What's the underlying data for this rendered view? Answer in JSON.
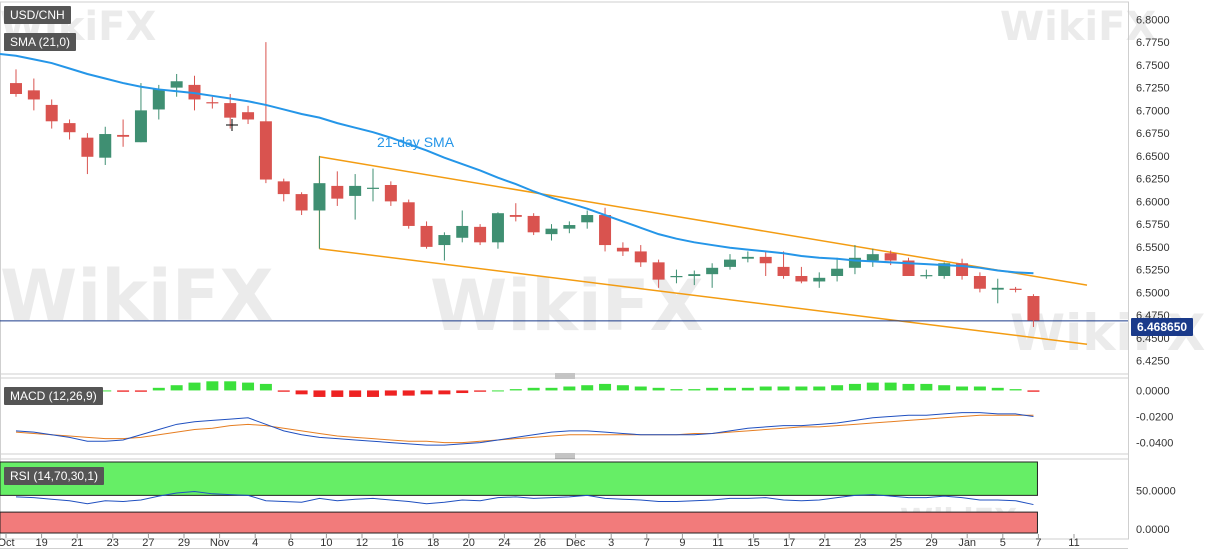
{
  "instrument": "USD/CNH",
  "watermark": "WikiFX",
  "colors": {
    "up": "#3f8f72",
    "down": "#d9534f",
    "sma": "#2596e8",
    "channel": "#f39c12",
    "macd_line": "#2050c0",
    "signal_line": "#e67e22",
    "rsi_line": "#2050c0",
    "rsi_ob": "#66ee66",
    "rsi_os": "#f27b7b",
    "price_line": "#1a3a8a",
    "label_bg": "#555555"
  },
  "chart_data": [
    {
      "type": "candlestick",
      "panel": "price",
      "title": "USD/CNH",
      "ylim": [
        6.4125,
        6.8125
      ],
      "yticks": [
        "6.8000",
        "6.7750",
        "6.7500",
        "6.7250",
        "6.7000",
        "6.6750",
        "6.6500",
        "6.6250",
        "6.6000",
        "6.5750",
        "6.5500",
        "6.5250",
        "6.5000",
        "6.4750",
        "6.4500",
        "6.4250"
      ],
      "x_tick_labels": [
        "Oct",
        "19",
        "21",
        "23",
        "27",
        "29",
        "Nov",
        "4",
        "6",
        "10",
        "12",
        "16",
        "18",
        "20",
        "24",
        "26",
        "Dec",
        "3",
        "7",
        "9",
        "11",
        "15",
        "17",
        "21",
        "23",
        "25",
        "29",
        "Jan",
        "5",
        "7",
        "11"
      ],
      "last_price_label": "6.468650",
      "last_price": 6.46865,
      "candles": [
        {
          "o": 6.73,
          "h": 6.745,
          "l": 6.715,
          "c": 6.718
        },
        {
          "o": 6.722,
          "h": 6.735,
          "l": 6.7,
          "c": 6.712
        },
        {
          "o": 6.706,
          "h": 6.712,
          "l": 6.68,
          "c": 6.688
        },
        {
          "o": 6.686,
          "h": 6.69,
          "l": 6.668,
          "c": 6.676
        },
        {
          "o": 6.67,
          "h": 6.675,
          "l": 6.63,
          "c": 6.649
        },
        {
          "o": 6.648,
          "h": 6.682,
          "l": 6.64,
          "c": 6.674
        },
        {
          "o": 6.673,
          "h": 6.69,
          "l": 6.66,
          "c": 6.671
        },
        {
          "o": 6.665,
          "h": 6.73,
          "l": 6.665,
          "c": 6.7
        },
        {
          "o": 6.701,
          "h": 6.728,
          "l": 6.69,
          "c": 6.723
        },
        {
          "o": 6.725,
          "h": 6.74,
          "l": 6.715,
          "c": 6.732
        },
        {
          "o": 6.728,
          "h": 6.738,
          "l": 6.7,
          "c": 6.712
        },
        {
          "o": 6.709,
          "h": 6.715,
          "l": 6.702,
          "c": 6.708
        },
        {
          "o": 6.708,
          "h": 6.718,
          "l": 6.68,
          "c": 6.692
        },
        {
          "o": 6.698,
          "h": 6.705,
          "l": 6.685,
          "c": 6.69
        },
        {
          "o": 6.688,
          "h": 6.775,
          "l": 6.62,
          "c": 6.624
        },
        {
          "o": 6.622,
          "h": 6.625,
          "l": 6.6,
          "c": 6.608
        },
        {
          "o": 6.608,
          "h": 6.61,
          "l": 6.585,
          "c": 6.59
        },
        {
          "o": 6.59,
          "h": 6.65,
          "l": 6.548,
          "c": 6.62
        },
        {
          "o": 6.617,
          "h": 6.633,
          "l": 6.595,
          "c": 6.603
        },
        {
          "o": 6.606,
          "h": 6.63,
          "l": 6.58,
          "c": 6.617
        },
        {
          "o": 6.614,
          "h": 6.636,
          "l": 6.6,
          "c": 6.615
        },
        {
          "o": 6.618,
          "h": 6.622,
          "l": 6.595,
          "c": 6.6
        },
        {
          "o": 6.599,
          "h": 6.602,
          "l": 6.57,
          "c": 6.573
        },
        {
          "o": 6.573,
          "h": 6.578,
          "l": 6.548,
          "c": 6.55
        },
        {
          "o": 6.552,
          "h": 6.566,
          "l": 6.535,
          "c": 6.563
        },
        {
          "o": 6.56,
          "h": 6.59,
          "l": 6.555,
          "c": 6.573
        },
        {
          "o": 6.572,
          "h": 6.575,
          "l": 6.552,
          "c": 6.555
        },
        {
          "o": 6.555,
          "h": 6.588,
          "l": 6.548,
          "c": 6.587
        },
        {
          "o": 6.585,
          "h": 6.598,
          "l": 6.578,
          "c": 6.583
        },
        {
          "o": 6.584,
          "h": 6.587,
          "l": 6.563,
          "c": 6.566
        },
        {
          "o": 6.564,
          "h": 6.575,
          "l": 6.557,
          "c": 6.57
        },
        {
          "o": 6.57,
          "h": 6.578,
          "l": 6.565,
          "c": 6.574
        },
        {
          "o": 6.577,
          "h": 6.59,
          "l": 6.57,
          "c": 6.585
        },
        {
          "o": 6.585,
          "h": 6.593,
          "l": 6.545,
          "c": 6.552
        },
        {
          "o": 6.549,
          "h": 6.555,
          "l": 6.54,
          "c": 6.545
        },
        {
          "o": 6.545,
          "h": 6.552,
          "l": 6.528,
          "c": 6.533
        },
        {
          "o": 6.533,
          "h": 6.536,
          "l": 6.505,
          "c": 6.514
        },
        {
          "o": 6.517,
          "h": 6.525,
          "l": 6.51,
          "c": 6.518
        },
        {
          "o": 6.518,
          "h": 6.524,
          "l": 6.508,
          "c": 6.52
        },
        {
          "o": 6.52,
          "h": 6.532,
          "l": 6.505,
          "c": 6.527
        },
        {
          "o": 6.528,
          "h": 6.542,
          "l": 6.525,
          "c": 6.536
        },
        {
          "o": 6.537,
          "h": 6.545,
          "l": 6.533,
          "c": 6.539
        },
        {
          "o": 6.539,
          "h": 6.545,
          "l": 6.518,
          "c": 6.532
        },
        {
          "o": 6.528,
          "h": 6.545,
          "l": 6.515,
          "c": 6.518
        },
        {
          "o": 6.518,
          "h": 6.528,
          "l": 6.51,
          "c": 6.512
        },
        {
          "o": 6.512,
          "h": 6.522,
          "l": 6.505,
          "c": 6.516
        },
        {
          "o": 6.518,
          "h": 6.538,
          "l": 6.512,
          "c": 6.526
        },
        {
          "o": 6.527,
          "h": 6.552,
          "l": 6.52,
          "c": 6.538
        },
        {
          "o": 6.535,
          "h": 6.548,
          "l": 6.528,
          "c": 6.542
        },
        {
          "o": 6.543,
          "h": 6.546,
          "l": 6.53,
          "c": 6.535
        },
        {
          "o": 6.535,
          "h": 6.538,
          "l": 6.52,
          "c": 6.518
        },
        {
          "o": 6.518,
          "h": 6.525,
          "l": 6.515,
          "c": 6.519
        },
        {
          "o": 6.518,
          "h": 6.533,
          "l": 6.515,
          "c": 6.532
        },
        {
          "o": 6.532,
          "h": 6.537,
          "l": 6.514,
          "c": 6.518
        },
        {
          "o": 6.518,
          "h": 6.522,
          "l": 6.5,
          "c": 6.504
        },
        {
          "o": 6.503,
          "h": 6.515,
          "l": 6.488,
          "c": 6.505
        },
        {
          "o": 6.504,
          "h": 6.506,
          "l": 6.5,
          "c": 6.503
        },
        {
          "o": 6.496,
          "h": 6.498,
          "l": 6.462,
          "c": 6.469
        }
      ],
      "sma_21": {
        "label": "SMA (21,0)",
        "annotation": "21-day SMA",
        "values": [
          6.76,
          6.756,
          6.752,
          6.746,
          6.74,
          6.735,
          6.73,
          6.726,
          6.723,
          6.721,
          6.719,
          6.716,
          6.713,
          6.71,
          6.706,
          6.701,
          6.696,
          6.692,
          6.686,
          6.681,
          6.676,
          6.67,
          6.663,
          6.656,
          6.648,
          6.641,
          6.634,
          6.626,
          6.619,
          6.611,
          6.604,
          6.598,
          6.592,
          6.585,
          6.578,
          6.571,
          6.564,
          6.559,
          6.555,
          6.552,
          6.549,
          6.547,
          6.545,
          6.543,
          6.54,
          6.538,
          6.537,
          6.535,
          6.534,
          6.533,
          6.532,
          6.531,
          6.53,
          6.529,
          6.527,
          6.524,
          6.522,
          6.521
        ]
      },
      "channel": {
        "upper": [
          {
            "i": 17,
            "y": 6.649
          },
          {
            "i": 60,
            "y": 6.508
          }
        ],
        "lower": [
          {
            "i": 17,
            "y": 6.548
          },
          {
            "i": 60,
            "y": 6.443
          }
        ]
      }
    },
    {
      "type": "macd",
      "panel": "macd",
      "label": "MACD (12,26,9)",
      "ylim": [
        -0.048,
        0.008
      ],
      "yticks": [
        "0.0000",
        "-0.0200",
        "-0.0400"
      ],
      "histogram": [
        0.0,
        0.001,
        0.002,
        0.002,
        0.001,
        0.0,
        -0.001,
        -0.001,
        0.002,
        0.004,
        0.006,
        0.007,
        0.007,
        0.006,
        0.005,
        -0.001,
        -0.003,
        -0.005,
        -0.005,
        -0.005,
        -0.005,
        -0.004,
        -0.004,
        -0.003,
        -0.003,
        -0.002,
        -0.001,
        0.0,
        0.001,
        0.002,
        0.002,
        0.003,
        0.004,
        0.005,
        0.004,
        0.003,
        0.002,
        0.001,
        0.001,
        0.002,
        0.002,
        0.002,
        0.003,
        0.003,
        0.003,
        0.003,
        0.004,
        0.005,
        0.006,
        0.006,
        0.005,
        0.005,
        0.004,
        0.003,
        0.003,
        0.002,
        0.001,
        -0.001
      ],
      "macd": [
        -0.031,
        -0.032,
        -0.034,
        -0.036,
        -0.039,
        -0.039,
        -0.038,
        -0.034,
        -0.03,
        -0.026,
        -0.024,
        -0.023,
        -0.022,
        -0.021,
        -0.026,
        -0.031,
        -0.034,
        -0.036,
        -0.037,
        -0.038,
        -0.039,
        -0.04,
        -0.041,
        -0.042,
        -0.042,
        -0.041,
        -0.04,
        -0.038,
        -0.036,
        -0.034,
        -0.032,
        -0.031,
        -0.031,
        -0.032,
        -0.033,
        -0.034,
        -0.034,
        -0.034,
        -0.034,
        -0.033,
        -0.031,
        -0.029,
        -0.028,
        -0.027,
        -0.027,
        -0.026,
        -0.025,
        -0.023,
        -0.021,
        -0.02,
        -0.019,
        -0.019,
        -0.018,
        -0.017,
        -0.017,
        -0.018,
        -0.018,
        -0.02
      ],
      "signal": [
        -0.032,
        -0.033,
        -0.034,
        -0.035,
        -0.036,
        -0.037,
        -0.037,
        -0.036,
        -0.034,
        -0.032,
        -0.03,
        -0.029,
        -0.027,
        -0.026,
        -0.027,
        -0.029,
        -0.031,
        -0.033,
        -0.035,
        -0.036,
        -0.037,
        -0.038,
        -0.039,
        -0.039,
        -0.04,
        -0.04,
        -0.039,
        -0.038,
        -0.037,
        -0.036,
        -0.035,
        -0.034,
        -0.034,
        -0.034,
        -0.034,
        -0.034,
        -0.034,
        -0.034,
        -0.033,
        -0.033,
        -0.032,
        -0.031,
        -0.03,
        -0.029,
        -0.028,
        -0.028,
        -0.027,
        -0.026,
        -0.025,
        -0.024,
        -0.023,
        -0.022,
        -0.021,
        -0.02,
        -0.019,
        -0.019,
        -0.019,
        -0.019
      ]
    },
    {
      "type": "line",
      "panel": "rsi",
      "label": "RSI (14,70,30,1)",
      "ylim": [
        -5,
        90
      ],
      "yticks": [
        "50.0000",
        "0.0000"
      ],
      "overbought": 70,
      "oversold": 30,
      "values": [
        42,
        41,
        39,
        37,
        33,
        37,
        36,
        38,
        43,
        47,
        49,
        46,
        45,
        44,
        37,
        36,
        35,
        40,
        37,
        39,
        40,
        38,
        36,
        33,
        35,
        38,
        37,
        41,
        42,
        40,
        41,
        42,
        44,
        40,
        39,
        38,
        36,
        36,
        37,
        38,
        40,
        40,
        41,
        38,
        37,
        38,
        41,
        44,
        45,
        43,
        41,
        41,
        43,
        41,
        38,
        38,
        37,
        32
      ]
    }
  ]
}
